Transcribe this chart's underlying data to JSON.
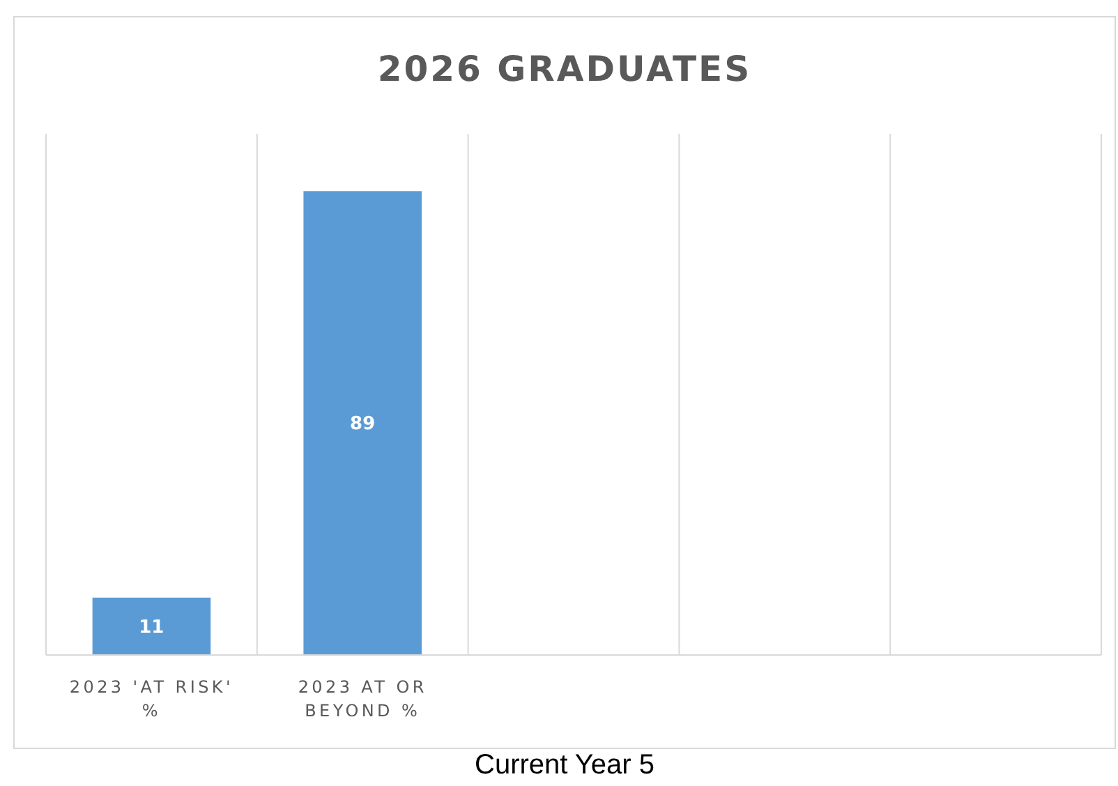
{
  "chart_data": {
    "type": "bar",
    "title": "2026 GRADUATES",
    "categories": [
      "2023 'AT RISK' %",
      "2023 AT OR BEYOND %",
      null,
      null,
      null
    ],
    "values": [
      11,
      89,
      null,
      null,
      null
    ],
    "color": "#5b9bd5",
    "ylim": [
      0,
      100
    ],
    "tick_labels": "x",
    "grid": "x",
    "data_labels": true,
    "annotations": [
      "Current Year 5"
    ]
  }
}
